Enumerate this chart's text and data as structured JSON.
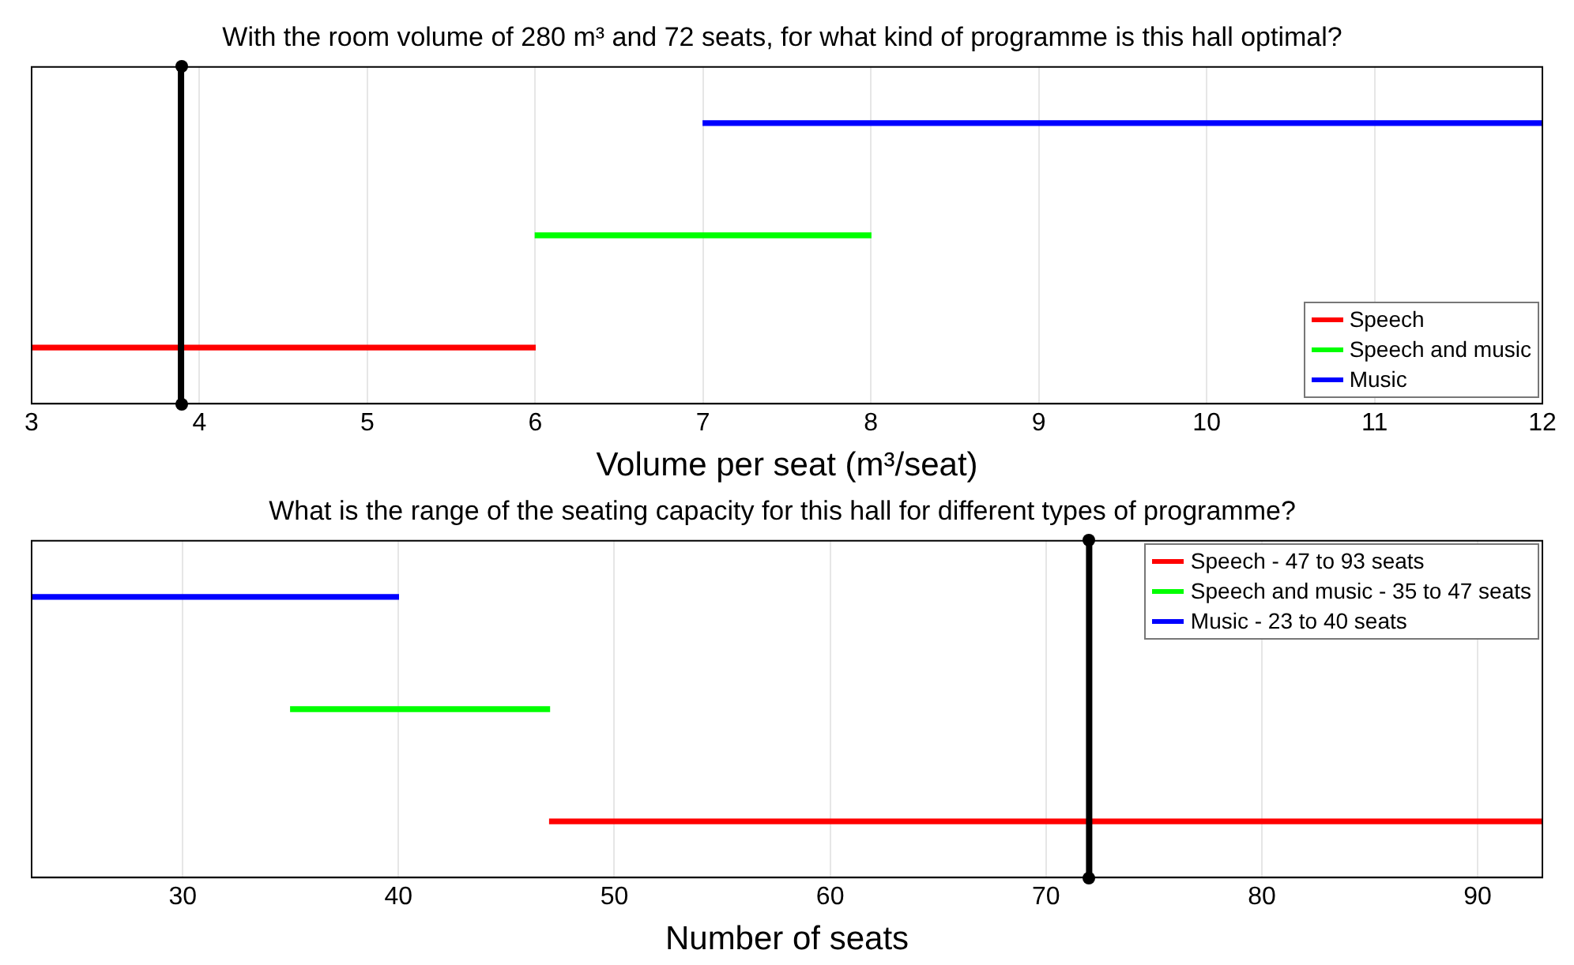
{
  "chart_data": [
    {
      "type": "bar",
      "orientation": "horizontal",
      "title": "With the room volume of 280 m³ and 72 seats, for what kind of programme is this hall optimal?",
      "xlabel": "Volume per seat (m³/seat)",
      "categories": [
        null,
        null,
        null
      ],
      "xlim": [
        3,
        12
      ],
      "xticks": [
        3,
        4,
        5,
        6,
        7,
        8,
        9,
        10,
        11,
        12
      ],
      "grid": "x",
      "legend": "bottom right",
      "series": [
        {
          "name": "Speech",
          "color": "#ff0000",
          "values": [
            null,
            null,
            3
          ],
          "base": [
            null,
            null,
            3
          ]
        },
        {
          "name": "Speech and music",
          "color": "#00ff00",
          "values": [
            null,
            2,
            null
          ],
          "base": [
            null,
            6,
            null
          ]
        },
        {
          "name": "Music",
          "color": "#0000ff",
          "values": [
            5,
            null,
            null
          ],
          "base": [
            7,
            null,
            null
          ]
        }
      ],
      "ref_lines": [
        {
          "axis": "x",
          "value": 3.89,
          "color": "#000000"
        }
      ]
    },
    {
      "type": "bar",
      "orientation": "horizontal",
      "title": "What is the range of the seating capacity for this hall for different types of programme?",
      "xlabel": "Number of seats",
      "categories": [
        null,
        null,
        null
      ],
      "xlim": [
        23,
        93
      ],
      "xticks": [
        30,
        40,
        50,
        60,
        70,
        80,
        90
      ],
      "grid": "x",
      "legend": "top right",
      "series": [
        {
          "name": "Speech - 47 to 93 seats",
          "color": "#ff0000",
          "values": [
            null,
            null,
            46
          ],
          "base": [
            null,
            null,
            47
          ]
        },
        {
          "name": "Speech and music - 35 to 47 seats",
          "color": "#00ff00",
          "values": [
            null,
            12,
            null
          ],
          "base": [
            null,
            35,
            null
          ]
        },
        {
          "name": "Music - 23 to 40 seats",
          "color": "#0000ff",
          "values": [
            17,
            null,
            null
          ],
          "base": [
            23,
            null,
            null
          ]
        }
      ],
      "ref_lines": [
        {
          "axis": "x",
          "value": 72,
          "color": "#000000"
        }
      ]
    }
  ]
}
